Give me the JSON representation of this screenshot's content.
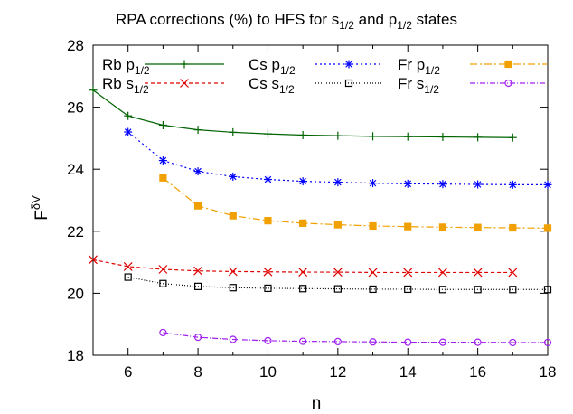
{
  "chart_data": {
    "type": "line",
    "title": {
      "prefix": "RPA corrections (%) to HFS for s",
      "sub1": "1/2",
      "mid": " and p",
      "sub2": "1/2",
      "suffix": " states"
    },
    "xlabel": "n",
    "ylabel": {
      "base": "F",
      "sup": "δV"
    },
    "xlim": [
      5,
      18
    ],
    "ylim": [
      18,
      28
    ],
    "xticks": [
      6,
      8,
      10,
      12,
      14,
      16,
      18
    ],
    "yticks": [
      18,
      20,
      22,
      24,
      26,
      28
    ],
    "grid": false,
    "legend_position": "top, three columns",
    "series": [
      {
        "name": "Rb p",
        "sub": "1/2",
        "color": "#006400",
        "dash": "",
        "marker": "plus",
        "x": [
          5,
          6,
          7,
          8,
          9,
          10,
          11,
          12,
          13,
          14,
          15,
          16,
          17
        ],
        "y": [
          26.55,
          25.72,
          25.42,
          25.27,
          25.19,
          25.14,
          25.1,
          25.08,
          25.06,
          25.05,
          25.04,
          25.03,
          25.02
        ]
      },
      {
        "name": "Rb s",
        "sub": "1/2",
        "color": "#e00000",
        "dash": "4,3",
        "marker": "x",
        "x": [
          5,
          6,
          7,
          8,
          9,
          10,
          11,
          12,
          13,
          14,
          15,
          16,
          17
        ],
        "y": [
          21.08,
          20.86,
          20.77,
          20.72,
          20.7,
          20.69,
          20.68,
          20.68,
          20.67,
          20.67,
          20.67,
          20.67,
          20.67
        ]
      },
      {
        "name": "Cs p",
        "sub": "1/2",
        "color": "#0000ff",
        "dash": "2,3",
        "marker": "star",
        "x": [
          6,
          7,
          8,
          9,
          10,
          11,
          12,
          13,
          14,
          15,
          16,
          17,
          18
        ],
        "y": [
          25.2,
          24.28,
          23.93,
          23.76,
          23.67,
          23.61,
          23.58,
          23.55,
          23.53,
          23.52,
          23.51,
          23.5,
          23.5
        ]
      },
      {
        "name": "Cs s",
        "sub": "1/2",
        "color": "#000000",
        "dash": "1,2",
        "marker": "square",
        "x": [
          6,
          7,
          8,
          9,
          10,
          11,
          12,
          13,
          14,
          15,
          16,
          17,
          18
        ],
        "y": [
          20.52,
          20.31,
          20.22,
          20.18,
          20.16,
          20.15,
          20.14,
          20.13,
          20.13,
          20.12,
          20.12,
          20.12,
          20.12
        ]
      },
      {
        "name": "Fr p",
        "sub": "1/2",
        "color": "#f0a000",
        "dash": "8,3,2,3",
        "marker": "filled-square",
        "x": [
          7,
          8,
          9,
          10,
          11,
          12,
          13,
          14,
          15,
          16,
          17,
          18
        ],
        "y": [
          23.72,
          22.82,
          22.5,
          22.34,
          22.26,
          22.21,
          22.17,
          22.15,
          22.13,
          22.12,
          22.11,
          22.1
        ]
      },
      {
        "name": "Fr s",
        "sub": "1/2",
        "color": "#a020f0",
        "dash": "6,2,1,2",
        "marker": "circle",
        "x": [
          7,
          8,
          9,
          10,
          11,
          12,
          13,
          14,
          15,
          16,
          17,
          18
        ],
        "y": [
          18.73,
          18.58,
          18.51,
          18.47,
          18.45,
          18.44,
          18.43,
          18.42,
          18.42,
          18.42,
          18.41,
          18.41
        ]
      }
    ]
  }
}
